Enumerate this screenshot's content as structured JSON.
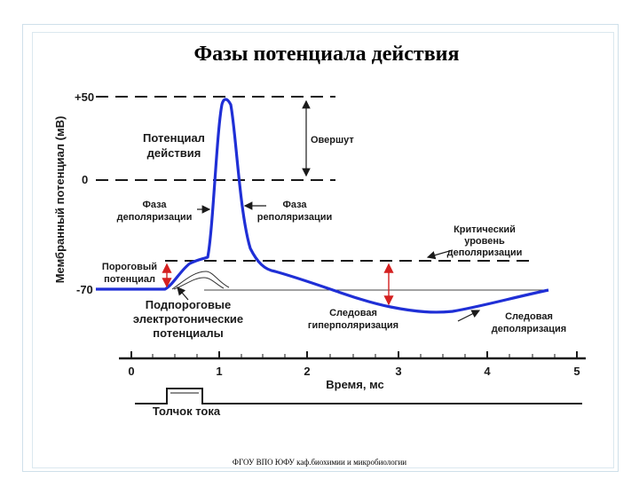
{
  "title": "Фазы потенциала действия",
  "footer": "ФГОУ ВПО ЮФУ каф.биохимии и микробиологии",
  "y_axis_label": "Мембранный потенциал (мВ)",
  "y_ticks": [
    "+50",
    "0",
    "-70"
  ],
  "x_axis_label": "Время, мс",
  "x_ticks": [
    "0",
    "1",
    "2",
    "3",
    "4",
    "5"
  ],
  "stimulus_label": "Толчок тока",
  "labels": {
    "action_potential_1": "Потенциал",
    "action_potential_2": "действия",
    "overshoot": "Овершут",
    "depol_phase_1": "Фаза",
    "depol_phase_2": "деполяризации",
    "repol_phase_1": "Фаза",
    "repol_phase_2": "реполяризации",
    "critical_1": "Критический",
    "critical_2": "уровень",
    "critical_3": "деполяризации",
    "threshold_1": "Пороговый",
    "threshold_2": "потенциал",
    "subthreshold_1": "Подпороговые",
    "subthreshold_2": "электротонические",
    "subthreshold_3": "потенциалы",
    "trace_hyper_1": "Следовая",
    "trace_hyper_2": "гиперполяризация",
    "trace_depol_1": "Следовая",
    "trace_depol_2": "деполяризация"
  },
  "colors": {
    "curve": "#1f2fd6",
    "arrow_red": "#d42020",
    "dashes": "#1a1a1a"
  }
}
